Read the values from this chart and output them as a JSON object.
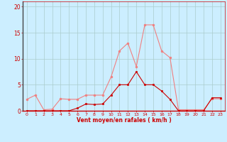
{
  "x": [
    0,
    1,
    2,
    3,
    4,
    5,
    6,
    7,
    8,
    9,
    10,
    11,
    12,
    13,
    14,
    15,
    16,
    17,
    18,
    19,
    20,
    21,
    22,
    23
  ],
  "y_rafales": [
    2.2,
    3.0,
    0.2,
    0.3,
    2.3,
    2.2,
    2.2,
    3.0,
    3.0,
    3.0,
    6.5,
    11.5,
    13.0,
    8.5,
    16.5,
    16.5,
    11.5,
    10.2,
    0.2,
    0.2,
    0.2,
    0.2,
    2.3,
    2.3
  ],
  "y_moyen": [
    0.0,
    0.0,
    0.0,
    0.0,
    0.0,
    0.0,
    0.5,
    1.3,
    1.2,
    1.3,
    3.0,
    5.0,
    5.0,
    7.5,
    5.0,
    5.0,
    3.8,
    2.2,
    0.0,
    0.0,
    0.0,
    0.0,
    2.5,
    2.5
  ],
  "color_rafales": "#f08080",
  "color_moyen": "#cc0000",
  "bg_color": "#cceeff",
  "grid_color": "#aacccc",
  "xlabel": "Vent moyen/en rafales ( km/h )",
  "xlim": [
    -0.5,
    23.5
  ],
  "ylim": [
    0,
    21
  ],
  "yticks": [
    0,
    5,
    10,
    15,
    20
  ],
  "xticks": [
    0,
    1,
    2,
    3,
    4,
    5,
    6,
    7,
    8,
    9,
    10,
    11,
    12,
    13,
    14,
    15,
    16,
    17,
    18,
    19,
    20,
    21,
    22,
    23
  ]
}
